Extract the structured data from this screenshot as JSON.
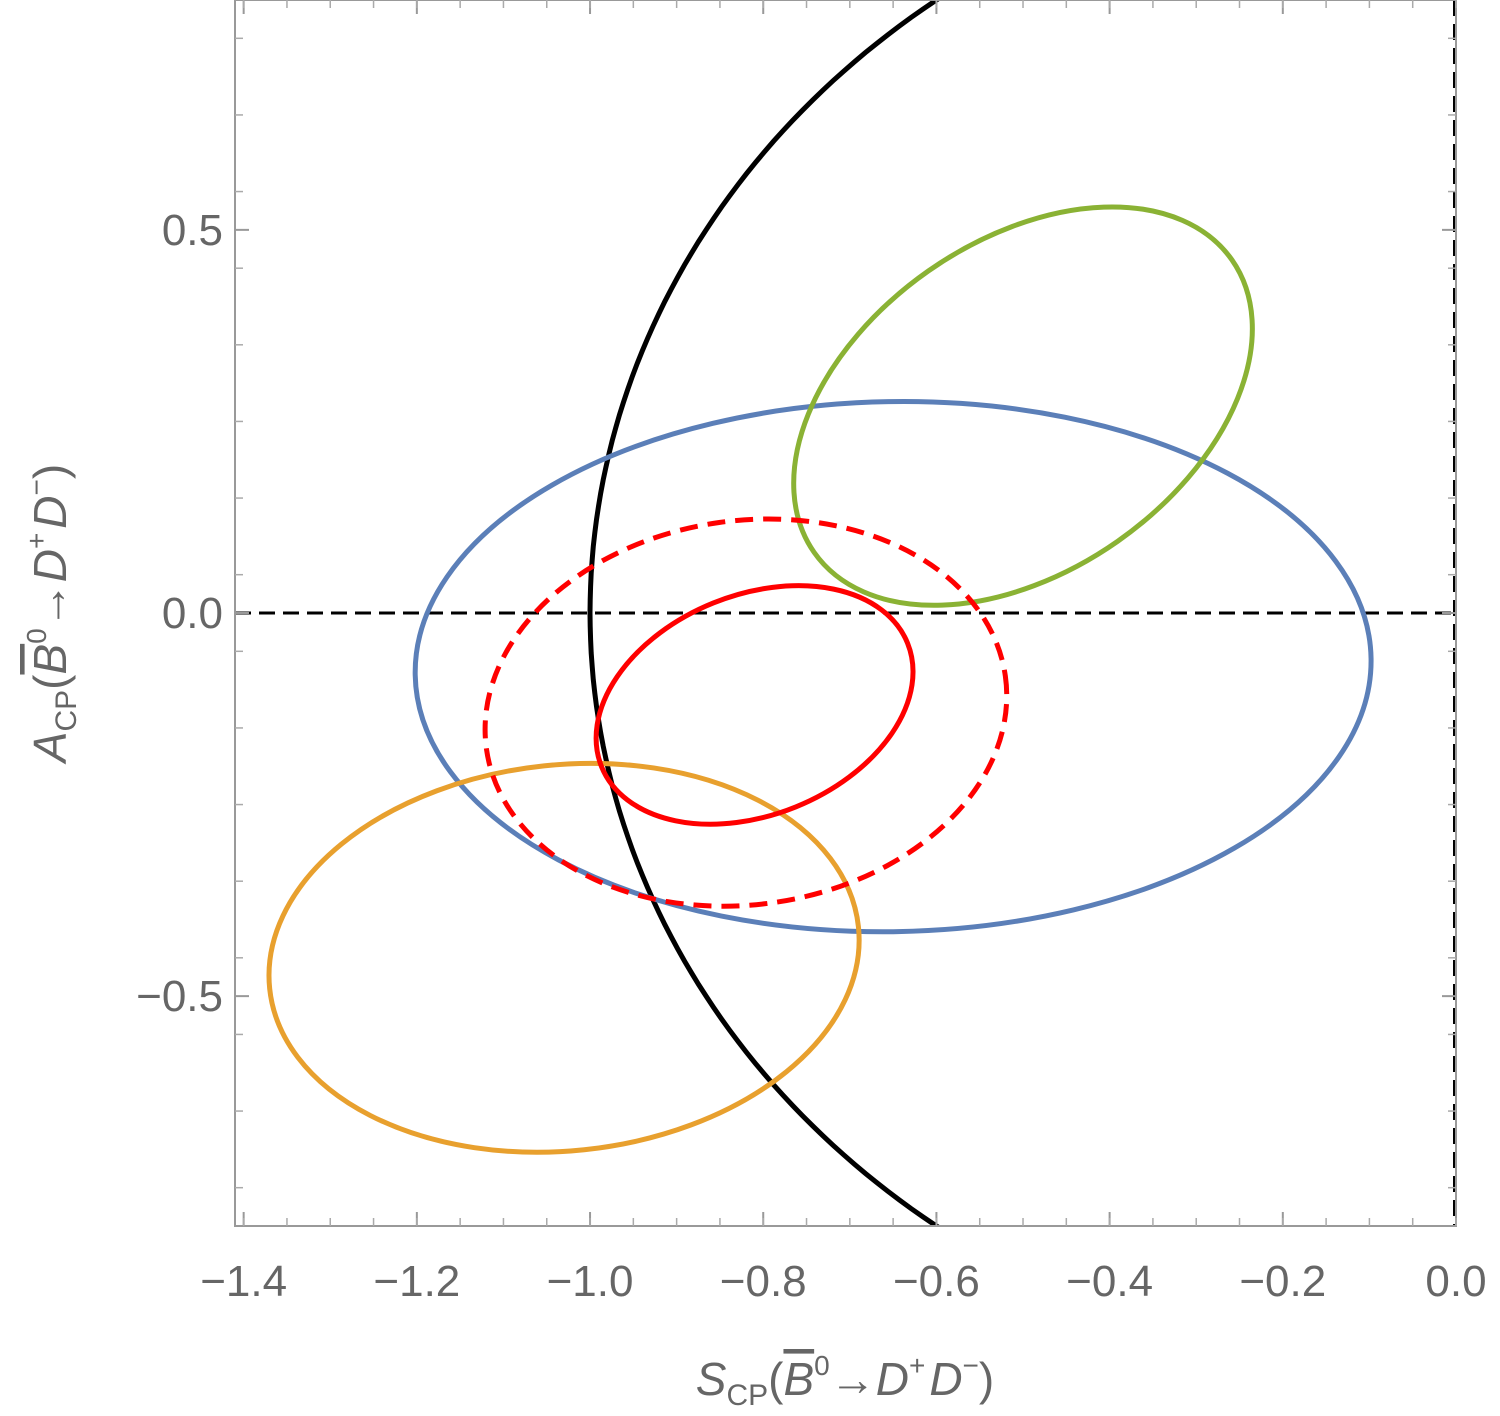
{
  "chart_data": {
    "type": "scatter",
    "title": "",
    "xlabel": {
      "main": "S",
      "sub": "CP",
      "paren_open": "(",
      "b": "B",
      "b_sup": "0",
      "arrow": "→",
      "d1": "D",
      "d1_sup": "+",
      "d2": "D",
      "d2_sup": "−",
      "paren_close": ")"
    },
    "ylabel": {
      "main": "A",
      "sub": "CP",
      "paren_open": "(",
      "b": "B",
      "b_sup": "0",
      "arrow": "→",
      "d1": "D",
      "d1_sup": "+",
      "d2": "D",
      "d2_sup": "−",
      "paren_close": ")"
    },
    "xlim": [
      -1.41,
      0.0
    ],
    "ylim": [
      -0.8,
      0.8
    ],
    "x_ticks": [
      {
        "value": -1.4,
        "label": "−1.4"
      },
      {
        "value": -1.2,
        "label": "−1.2"
      },
      {
        "value": -1.0,
        "label": "−1.0"
      },
      {
        "value": -0.8,
        "label": "−0.8"
      },
      {
        "value": -0.6,
        "label": "−0.6"
      },
      {
        "value": -0.4,
        "label": "−0.4"
      },
      {
        "value": -0.2,
        "label": "−0.2"
      },
      {
        "value": 0.0,
        "label": "0.0"
      }
    ],
    "y_ticks": [
      {
        "value": 0.5,
        "label": "0.5"
      },
      {
        "value": 0.0,
        "label": "0.0"
      },
      {
        "value": -0.5,
        "label": "−0.5"
      }
    ],
    "grid": false,
    "legend": "none",
    "reference_lines": [
      {
        "orientation": "horizontal",
        "value": 0.0,
        "style": "dashed",
        "color": "#000000"
      },
      {
        "orientation": "vertical",
        "value": 0.0,
        "style": "dashed",
        "color": "#000000"
      }
    ],
    "unit_circle": {
      "center": [
        0,
        0
      ],
      "radius": 1.0,
      "color": "#000000",
      "style": "solid"
    },
    "ellipses": [
      {
        "color": "#5b7fb8",
        "style": "solid",
        "center": [
          -0.65,
          -0.07
        ],
        "points": [
          [
            -1.17,
            0.0
          ],
          [
            -0.08,
            0.0
          ],
          [
            -0.65,
            0.28
          ],
          [
            -0.64,
            -0.42
          ],
          [
            -1.18,
            -0.07
          ],
          [
            -0.09,
            -0.07
          ]
        ]
      },
      {
        "color": "#8ab234",
        "style": "solid",
        "center": [
          -0.5,
          0.27
        ],
        "points": [
          [
            -0.65,
            0.0
          ],
          [
            -0.35,
            0.54
          ],
          [
            -0.27,
            0.36
          ],
          [
            -0.79,
            0.14
          ],
          [
            -0.5,
            0.27
          ]
        ]
      },
      {
        "color": "#e8a02e",
        "style": "solid",
        "center": [
          -1.03,
          -0.45
        ],
        "points": [
          [
            -1.12,
            -0.18
          ],
          [
            -1.03,
            -0.72
          ],
          [
            -1.4,
            -0.4
          ],
          [
            -0.72,
            -0.46
          ]
        ]
      },
      {
        "color": "#ff0000",
        "style": "solid",
        "center": [
          -0.81,
          -0.12
        ],
        "points": [
          [
            -0.82,
            0.03
          ],
          [
            -0.87,
            -0.28
          ],
          [
            -1.0,
            -0.16
          ],
          [
            -0.64,
            -0.09
          ]
        ]
      },
      {
        "color": "#ff0000",
        "style": "dashed",
        "center": [
          -0.82,
          -0.13
        ],
        "points": [
          [
            -0.83,
            0.13
          ],
          [
            -0.88,
            -0.38
          ],
          [
            -1.12,
            -0.18
          ],
          [
            -0.52,
            -0.09
          ]
        ]
      }
    ]
  }
}
